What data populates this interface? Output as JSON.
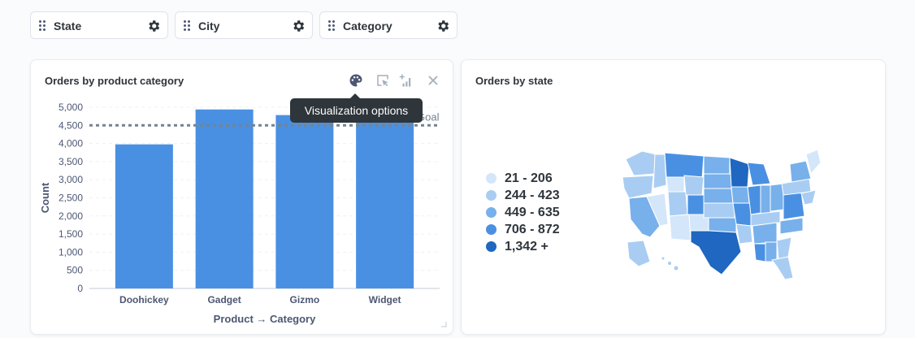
{
  "filters": [
    {
      "label": "State"
    },
    {
      "label": "City"
    },
    {
      "label": "Category"
    }
  ],
  "card_left": {
    "title": "Orders by product category",
    "tooltip": "Visualization options",
    "goal_label": "Goal"
  },
  "card_right": {
    "title": "Orders by state",
    "legend": [
      {
        "label": "21 - 206",
        "color": "#d4e6f9"
      },
      {
        "label": "244 - 423",
        "color": "#a9cdf2"
      },
      {
        "label": "449 - 635",
        "color": "#78b0eb"
      },
      {
        "label": "706 - 872",
        "color": "#4a90e2"
      },
      {
        "label": "1,342 +",
        "color": "#1f67c0"
      }
    ]
  },
  "colors": {
    "bar": "#4a90e2",
    "goal": "#74838f",
    "accent": "#509ee3"
  },
  "chart_data": {
    "type": "bar",
    "categories": [
      "Doohickey",
      "Gadget",
      "Gizmo",
      "Widget"
    ],
    "values": [
      3976,
      4939,
      4784,
      5061
    ],
    "ylim": [
      0,
      5000
    ],
    "yticks": [
      0,
      500,
      1000,
      1500,
      2000,
      2500,
      3000,
      3500,
      4000,
      4500,
      5000
    ],
    "ytick_labels": [
      "0",
      "500",
      "1,000",
      "1,500",
      "2,000",
      "2,500",
      "3,000",
      "3,500",
      "4,000",
      "4,500",
      "5,000"
    ],
    "goal": 4500,
    "ylabel": "Count",
    "xlabel": "Product → Category"
  }
}
